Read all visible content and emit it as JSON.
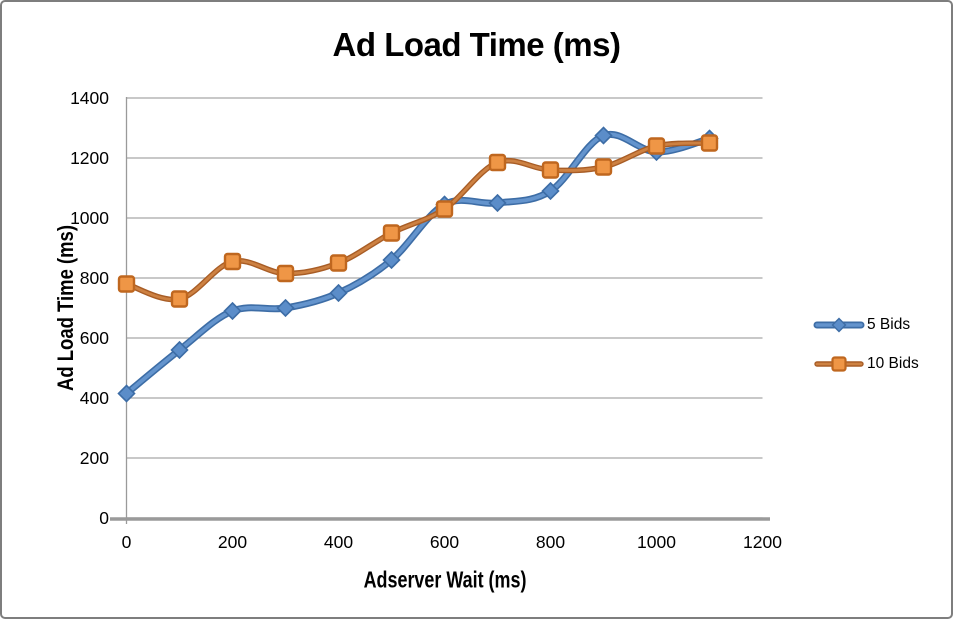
{
  "title": "Ad Load Time (ms)",
  "chart_data": {
    "type": "line",
    "title": "Ad Load Time (ms)",
    "xlabel": "Adserver Wait (ms)",
    "ylabel": "Ad Load Time (ms)",
    "x": [
      0,
      100,
      200,
      300,
      400,
      500,
      600,
      700,
      800,
      900,
      1000,
      1100
    ],
    "series": [
      {
        "name": "5 Bids",
        "marker": "diamond",
        "values": [
          415,
          560,
          690,
          700,
          750,
          860,
          1045,
          1050,
          1090,
          1275,
          1220,
          1265
        ],
        "line_edge": "#3d6da6",
        "line_core": "#6494cd",
        "marker_fill": "#5b8dc9",
        "marker_stroke": "#3d6da6"
      },
      {
        "name": "10 Bids",
        "marker": "square",
        "values": [
          780,
          730,
          855,
          815,
          850,
          950,
          1030,
          1185,
          1160,
          1170,
          1240,
          1250
        ],
        "line_edge": "#a85d26",
        "line_core": "#cd8142",
        "marker_fill": "#ef9646",
        "marker_stroke": "#bf671f"
      }
    ],
    "xlim": [
      0,
      1200
    ],
    "ylim": [
      0,
      1400
    ],
    "x_ticks": [
      0,
      200,
      400,
      600,
      800,
      1000,
      1200
    ],
    "y_ticks": [
      0,
      200,
      400,
      600,
      800,
      1000,
      1200,
      1400
    ],
    "grid": "horizontal-only",
    "legend_position": "right-middle",
    "colors": {
      "grid": "#a6a6a6",
      "axis": "#9a9a9a",
      "text": "#000000",
      "background": "#ffffff",
      "frame_border": "#7e7e7e"
    }
  }
}
